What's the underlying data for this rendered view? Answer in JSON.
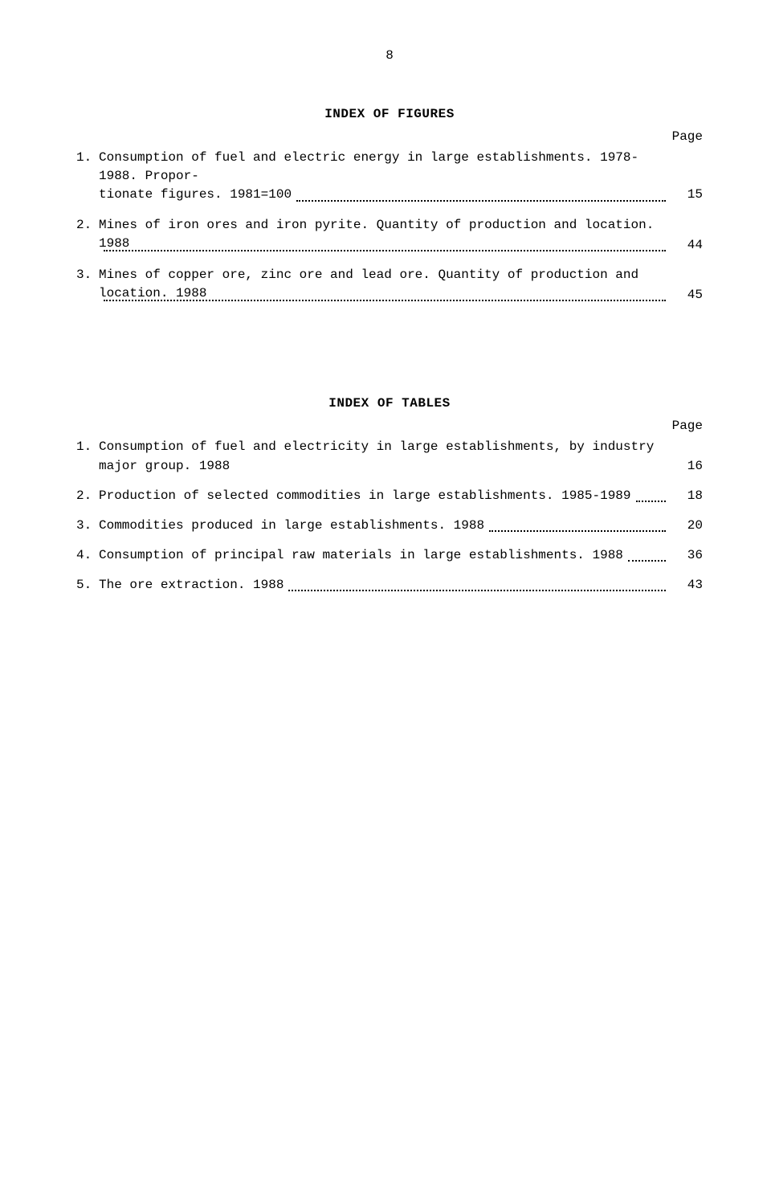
{
  "page_number": "8",
  "page_column_label": "Page",
  "sections": {
    "figures": {
      "title": "INDEX OF FIGURES",
      "entries": [
        {
          "num": "1.",
          "line1": "Consumption of fuel and electric energy in large establishments.  1978-1988.  Propor-",
          "line2": "tionate figures.  1981=100",
          "page": "15"
        },
        {
          "num": "2.",
          "line1": "",
          "line2": "Mines of iron ores and iron pyrite.  Quantity of production and location. 1988",
          "page": "44"
        },
        {
          "num": "3.",
          "line1": "",
          "line2": "Mines of copper ore, zinc ore and lead ore.  Quantity of production and location. 1988",
          "page": "45"
        }
      ]
    },
    "tables": {
      "title": "INDEX OF TABLES",
      "entries": [
        {
          "num": "1.",
          "line1": "",
          "line2": "Consumption of fuel and electricity in large establishments, by industry major group. 1988",
          "page": "16"
        },
        {
          "num": "2.",
          "line1": "",
          "line2": "Production of selected commodities in large establishments.  1985-1989",
          "page": "18"
        },
        {
          "num": "3.",
          "line1": "",
          "line2": "Commodities produced in large establishments. 1988",
          "page": "20"
        },
        {
          "num": "4.",
          "line1": "",
          "line2": "Consumption of principal raw materials in large establishments. 1988",
          "page": "36"
        },
        {
          "num": "5.",
          "line1": "",
          "line2": "The ore extraction. 1988",
          "page": "43"
        }
      ]
    }
  }
}
